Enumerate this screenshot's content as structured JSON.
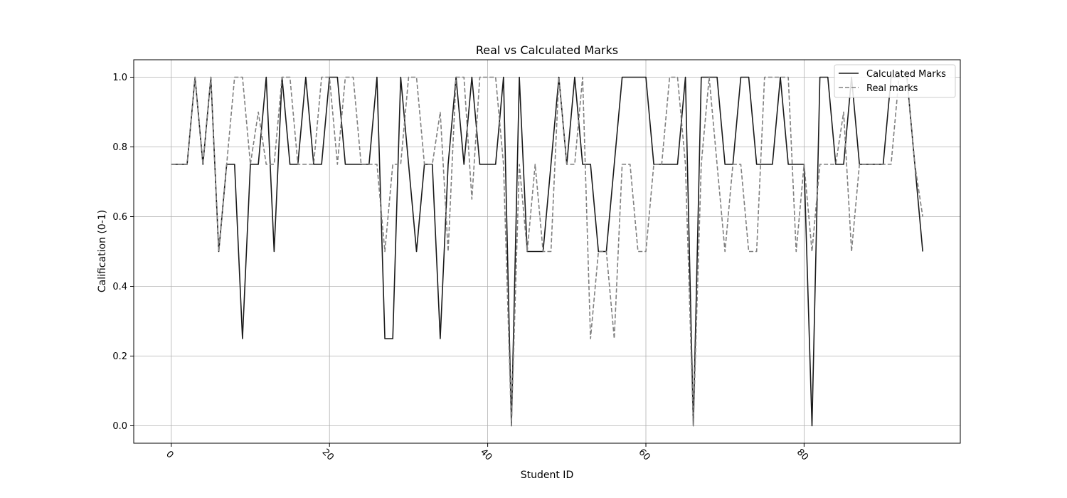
{
  "chart_data": {
    "type": "line",
    "title": "Real vs Calculated Marks",
    "xlabel": "Student ID",
    "ylabel": "Calification (0-1)",
    "xlim": [
      -4.75,
      99.75
    ],
    "ylim": [
      -0.05,
      1.05
    ],
    "xticks": [
      0,
      20,
      40,
      60,
      80
    ],
    "yticks": [
      0.0,
      0.2,
      0.4,
      0.6,
      0.8,
      1.0
    ],
    "xtick_labels": [
      "0",
      "20",
      "40",
      "60",
      "80"
    ],
    "ytick_labels": [
      "0.0",
      "0.2",
      "0.4",
      "0.6",
      "0.8",
      "1.0"
    ],
    "xtick_rotation": "rotated",
    "grid": true,
    "legend_position": "top-right",
    "x": [
      0,
      1,
      2,
      3,
      4,
      5,
      6,
      7,
      8,
      9,
      10,
      11,
      12,
      13,
      14,
      15,
      16,
      17,
      18,
      19,
      20,
      21,
      22,
      23,
      24,
      25,
      26,
      27,
      28,
      29,
      30,
      31,
      32,
      33,
      34,
      35,
      36,
      37,
      38,
      39,
      40,
      41,
      42,
      43,
      44,
      45,
      46,
      47,
      48,
      49,
      50,
      51,
      52,
      53,
      54,
      55,
      56,
      57,
      58,
      59,
      60,
      61,
      62,
      63,
      64,
      65,
      66,
      67,
      68,
      69,
      70,
      71,
      72,
      73,
      74,
      75,
      76,
      77,
      78,
      79,
      80,
      81,
      82,
      83,
      84,
      85,
      86,
      87,
      88,
      89,
      90,
      91,
      92,
      93,
      94,
      95
    ],
    "series": [
      {
        "name": "Calculated Marks",
        "color": "#1a1a1a",
        "style": "solid",
        "values": [
          0.75,
          0.75,
          0.75,
          1.0,
          0.75,
          1.0,
          0.5,
          0.75,
          0.75,
          0.25,
          0.75,
          0.75,
          1.0,
          0.5,
          1.0,
          0.75,
          0.75,
          1.0,
          0.75,
          0.75,
          1.0,
          1.0,
          0.75,
          0.75,
          0.75,
          0.75,
          1.0,
          0.25,
          0.25,
          1.0,
          0.75,
          0.5,
          0.75,
          0.75,
          0.25,
          0.75,
          1.0,
          0.75,
          1.0,
          0.75,
          0.75,
          0.75,
          1.0,
          0.0,
          1.0,
          0.5,
          0.5,
          0.5,
          0.75,
          1.0,
          0.75,
          1.0,
          0.75,
          0.75,
          0.5,
          0.5,
          0.75,
          1.0,
          1.0,
          1.0,
          1.0,
          0.75,
          0.75,
          0.75,
          0.75,
          1.0,
          0.0,
          1.0,
          1.0,
          1.0,
          0.75,
          0.75,
          1.0,
          1.0,
          0.75,
          0.75,
          0.75,
          1.0,
          0.75,
          0.75,
          0.75,
          0.0,
          1.0,
          1.0,
          0.75,
          0.75,
          1.0,
          0.75,
          0.75,
          0.75,
          0.75,
          1.0,
          1.0,
          1.0,
          0.75,
          0.5
        ]
      },
      {
        "name": "Real marks",
        "color": "#808080",
        "style": "dashed",
        "values": [
          0.75,
          0.75,
          0.75,
          1.0,
          0.75,
          1.0,
          0.5,
          0.75,
          1.0,
          1.0,
          0.75,
          0.9,
          0.75,
          0.75,
          1.0,
          1.0,
          0.75,
          0.75,
          0.75,
          1.0,
          1.0,
          0.75,
          1.0,
          1.0,
          0.75,
          0.75,
          0.75,
          0.5,
          0.75,
          0.75,
          1.0,
          1.0,
          0.75,
          0.75,
          0.9,
          0.5,
          1.0,
          1.0,
          0.65,
          1.0,
          1.0,
          1.0,
          0.75,
          0.0,
          0.75,
          0.5,
          0.75,
          0.5,
          0.5,
          1.0,
          0.75,
          0.75,
          1.0,
          0.25,
          0.5,
          0.5,
          0.25,
          0.75,
          0.75,
          0.5,
          0.5,
          0.75,
          0.75,
          1.0,
          1.0,
          0.75,
          0.0,
          0.75,
          1.0,
          0.75,
          0.5,
          0.75,
          0.75,
          0.5,
          0.5,
          1.0,
          1.0,
          1.0,
          1.0,
          0.5,
          0.75,
          0.5,
          0.75,
          0.75,
          0.75,
          0.9,
          0.5,
          0.75,
          0.75,
          0.75,
          0.75,
          0.75,
          1.0,
          1.0,
          0.75,
          0.6
        ]
      }
    ]
  }
}
